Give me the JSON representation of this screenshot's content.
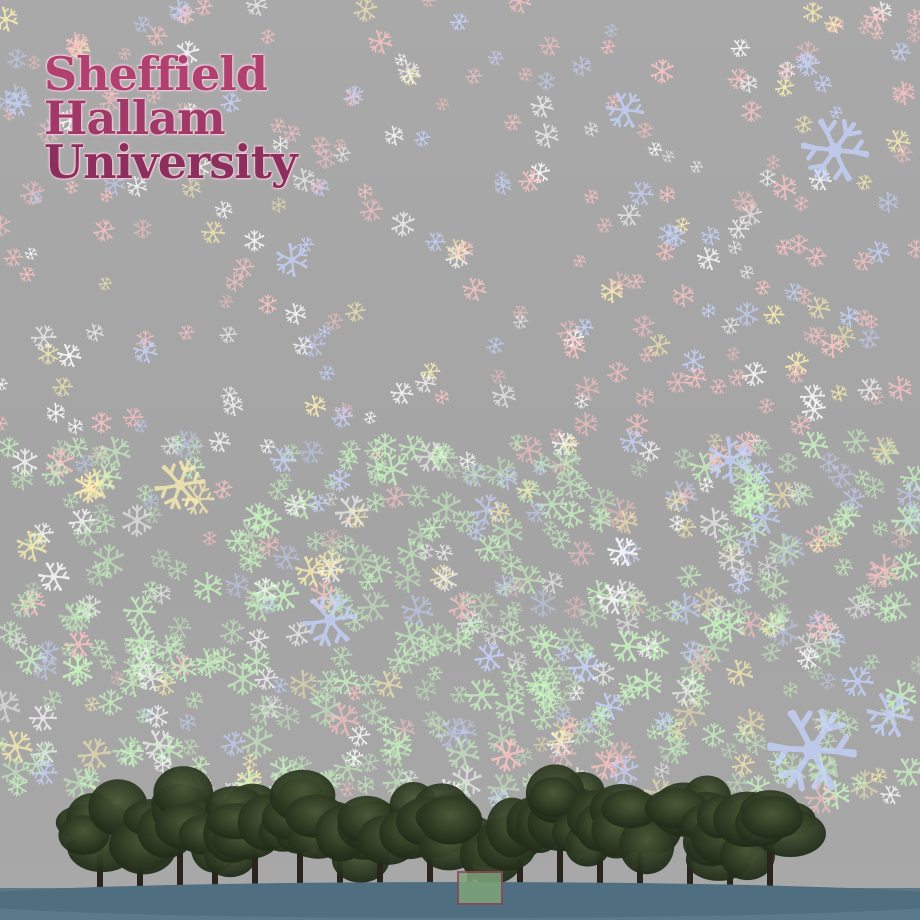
{
  "logo": {
    "line1": "Sheffield",
    "line2": "Hallam",
    "line3": "University",
    "color": "#b0406f"
  },
  "scene": {
    "sky_color": "#a6a6a6",
    "ground_color": "#5a7a8c",
    "tree_color": "#2f3a24",
    "snowflake_colors": [
      "#ffc4c4",
      "#c8f5c0",
      "#c6d4ff",
      "#fff0b0",
      "#ffffff"
    ],
    "snowflake_icon": "snowflake-icon",
    "tree_icon": "tree-icon"
  }
}
